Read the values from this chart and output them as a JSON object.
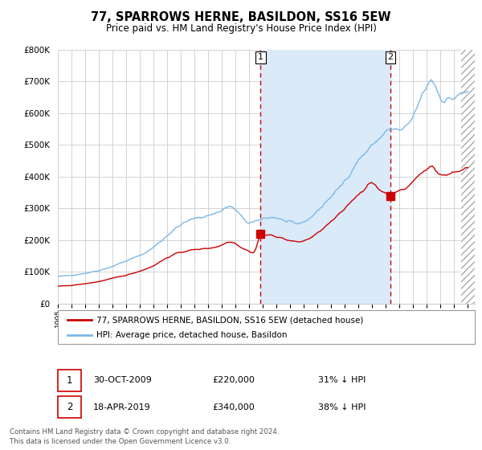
{
  "title": "77, SPARROWS HERNE, BASILDON, SS16 5EW",
  "subtitle": "Price paid vs. HM Land Registry's House Price Index (HPI)",
  "red_line_label": "77, SPARROWS HERNE, BASILDON, SS16 5EW (detached house)",
  "blue_line_label": "HPI: Average price, detached house, Basildon",
  "sale1_date": "30-OCT-2009",
  "sale1_price": 220000,
  "sale1_note": "31% ↓ HPI",
  "sale2_date": "18-APR-2019",
  "sale2_price": 340000,
  "sale2_note": "38% ↓ HPI",
  "footer1": "Contains HM Land Registry data © Crown copyright and database right 2024.",
  "footer2": "This data is licensed under the Open Government Licence v3.0.",
  "ylim": [
    0,
    800000
  ],
  "xlim_start": 1995.0,
  "xlim_end": 2025.5,
  "hpi_color": "#7ab8e8",
  "price_color": "#cc0000",
  "vline_color": "#cc0000",
  "shade_color": "#daeaf8",
  "background_color": "#ffffff",
  "grid_color": "#cccccc",
  "sale1_x": 2009.833,
  "sale2_x": 2019.333
}
